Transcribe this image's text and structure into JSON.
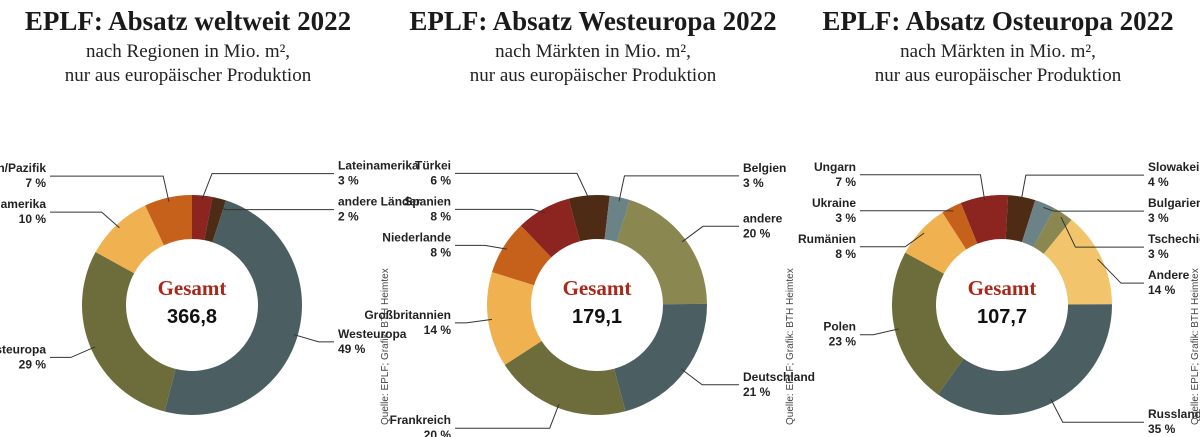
{
  "chart_data": [
    {
      "type": "pie",
      "title": "EPLF: Absatz weltweit 2022",
      "subtitle": [
        "nach Regionen in Mio. m²,",
        "nur aus europäischer Produktion"
      ],
      "center_label": "Gesamt",
      "total": {
        "value": 366.8,
        "label": "366,8"
      },
      "categories": [
        "Lateinamerika",
        "andere Länder",
        "Westeuropa",
        "Osteuropa",
        "Nordamerika",
        "Asien/Pazifik"
      ],
      "values": [
        3,
        2,
        49,
        29,
        10,
        7
      ],
      "value_labels": [
        "3 %",
        "2 %",
        "49 %",
        "29 %",
        "10 %",
        "7 %"
      ],
      "colors": [
        "#8c2420",
        "#4e2b14",
        "#4b5f62",
        "#6d6d3b",
        "#f0b250",
        "#c6611c"
      ],
      "source": "Quelle: EPLF; Grafik: BTH Heimtex"
    },
    {
      "type": "pie",
      "title": "EPLF: Absatz Westeuropa 2022",
      "subtitle": [
        "nach Märkten in Mio. m²,",
        "nur aus europäischer Produktion"
      ],
      "center_label": "Gesamt",
      "total": {
        "value": 179.1,
        "label": "179,1"
      },
      "categories": [
        "Türkei",
        "Belgien",
        "andere",
        "Deutschland",
        "Frankreich",
        "Großbritannien",
        "Niederlande",
        "Spanien"
      ],
      "values": [
        6,
        3,
        20,
        21,
        20,
        14,
        8,
        8
      ],
      "value_labels": [
        "6 %",
        "3 %",
        "20 %",
        "21 %",
        "20 %",
        "14 %",
        "8 %",
        "8 %"
      ],
      "colors": [
        "#4e2b14",
        "#6b8286",
        "#8a8850",
        "#4b5f62",
        "#6d6d3b",
        "#f0b250",
        "#c6611c",
        "#8c2420"
      ],
      "source": "Quelle: EPLF; Grafik: BTH Heimtex"
    },
    {
      "type": "pie",
      "title": "EPLF: Absatz Osteuropa 2022",
      "subtitle": [
        "nach Märkten in Mio. m²,",
        "nur aus europäischer Produktion"
      ],
      "center_label": "Gesamt",
      "total": {
        "value": 107.7,
        "label": "107,7"
      },
      "categories": [
        "Ungarn",
        "Slowakei",
        "Bulgarien",
        "Tschechien",
        "Andere",
        "Russland",
        "Polen",
        "Rumänien",
        "Ukraine"
      ],
      "values": [
        7,
        4,
        3,
        3,
        14,
        35,
        23,
        8,
        3
      ],
      "value_labels": [
        "7 %",
        "4 %",
        "3 %",
        "3 %",
        "14 %",
        "35 %",
        "23 %",
        "8 %",
        "3 %"
      ],
      "colors": [
        "#8c2420",
        "#4e2b14",
        "#6b8286",
        "#8a8850",
        "#f2c46c",
        "#4b5f62",
        "#6d6d3b",
        "#f0b250",
        "#c6611c"
      ],
      "source": "Quelle: EPLF; Grafik: BTH Heimtex"
    }
  ]
}
